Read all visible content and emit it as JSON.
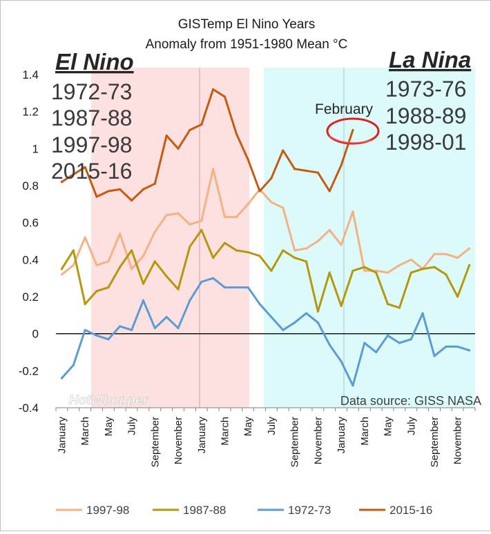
{
  "chart_data": {
    "type": "line",
    "title_line1": "GISTemp  El Nino Years",
    "title_line2": "Anomaly  from 1951-1980 Mean °C",
    "ylim": [
      -0.4,
      1.4
    ],
    "y_ticks": [
      "-0.4",
      "-0.2",
      "0",
      "0.2",
      "0.4",
      "0.6",
      "0.8",
      "1",
      "1.2",
      "1.4"
    ],
    "x_count": 36,
    "x_tick_labels": [
      {
        "i": 0,
        "label": "January"
      },
      {
        "i": 2,
        "label": "March"
      },
      {
        "i": 4,
        "label": "May"
      },
      {
        "i": 6,
        "label": "July"
      },
      {
        "i": 8,
        "label": "September"
      },
      {
        "i": 10,
        "label": "November"
      },
      {
        "i": 12,
        "label": "January"
      },
      {
        "i": 14,
        "label": "March"
      },
      {
        "i": 16,
        "label": "May"
      },
      {
        "i": 18,
        "label": "July"
      },
      {
        "i": 20,
        "label": "September"
      },
      {
        "i": 22,
        "label": "November"
      },
      {
        "i": 24,
        "label": "January"
      },
      {
        "i": 26,
        "label": "March"
      },
      {
        "i": 28,
        "label": "May"
      },
      {
        "i": 30,
        "label": "July"
      },
      {
        "i": 32,
        "label": "September"
      },
      {
        "i": 34,
        "label": "November"
      }
    ],
    "series": [
      {
        "name": "1997-98",
        "color": "#f4b183",
        "values": [
          0.32,
          0.37,
          0.52,
          0.37,
          0.39,
          0.54,
          0.35,
          0.42,
          0.55,
          0.64,
          0.65,
          0.59,
          0.61,
          0.89,
          0.63,
          0.63,
          0.7,
          0.78,
          0.71,
          0.68,
          0.45,
          0.46,
          0.5,
          0.56,
          0.48,
          0.66,
          0.34,
          0.34,
          0.33,
          0.37,
          0.4,
          0.35,
          0.43,
          0.43,
          0.41,
          0.46
        ]
      },
      {
        "name": "1987-88",
        "color": "#b5970e",
        "values": [
          0.35,
          0.45,
          0.16,
          0.23,
          0.25,
          0.36,
          0.45,
          0.27,
          0.39,
          0.31,
          0.24,
          0.47,
          0.56,
          0.41,
          0.49,
          0.45,
          0.44,
          0.42,
          0.34,
          0.45,
          0.41,
          0.39,
          0.12,
          0.33,
          0.15,
          0.34,
          0.36,
          0.33,
          0.16,
          0.14,
          0.33,
          0.35,
          0.36,
          0.32,
          0.2,
          0.37
        ]
      },
      {
        "name": "1972-73",
        "color": "#5b9bd5",
        "values": [
          -0.24,
          -0.17,
          0.02,
          -0.01,
          -0.03,
          0.04,
          0.02,
          0.18,
          0.03,
          0.09,
          0.03,
          0.18,
          0.28,
          0.3,
          0.25,
          0.25,
          0.25,
          0.16,
          0.09,
          0.02,
          0.06,
          0.11,
          0.06,
          -0.06,
          -0.15,
          -0.28,
          -0.05,
          -0.1,
          -0.01,
          -0.05,
          -0.03,
          0.11,
          -0.12,
          -0.07,
          -0.07,
          -0.09
        ]
      },
      {
        "name": "2015-16",
        "color": "#c55a11",
        "values": [
          0.82,
          0.86,
          0.9,
          0.74,
          0.77,
          0.78,
          0.72,
          0.78,
          0.81,
          1.07,
          1.0,
          1.1,
          1.13,
          1.32,
          1.28,
          1.08,
          0.94,
          0.77,
          0.84,
          0.99,
          0.89,
          0.88,
          0.87,
          0.77,
          0.91,
          1.1
        ]
      }
    ],
    "annotations": {
      "el_nino_title": "El Nino",
      "el_nino_years": [
        "1972-73",
        "1987-88",
        "1997-98",
        "2015-16"
      ],
      "la_nina_title": "La Nina",
      "la_nina_years": [
        "1973-76",
        "1988-89",
        "1998-01"
      ],
      "callout": "February",
      "source": "Data source: GISS NASA",
      "watermark": "HotWhopper"
    },
    "colors": {
      "el_nino_shade": "#fde0e0",
      "la_nina_shade": "#dcfafa",
      "highlight_ring": "#e02020",
      "axis_text": "#000000",
      "grid_lines": "#c8a0a8"
    }
  }
}
